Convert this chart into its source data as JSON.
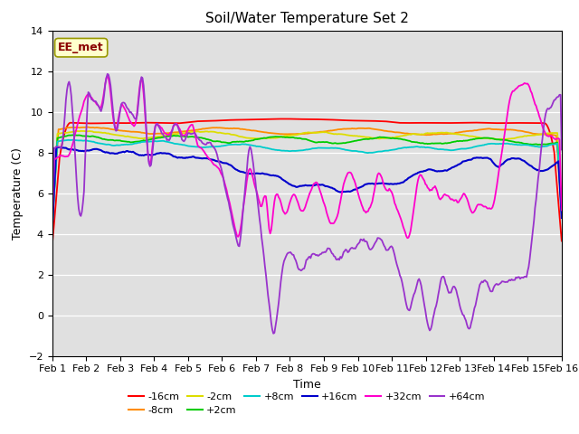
{
  "title": "Soil/Water Temperature Set 2",
  "xlabel": "Time",
  "ylabel": "Temperature (C)",
  "ylim": [
    -2,
    14
  ],
  "yticks": [
    -2,
    0,
    2,
    4,
    6,
    8,
    10,
    12,
    14
  ],
  "x_labels": [
    "Feb 1",
    "Feb 2",
    "Feb 3",
    "Feb 4",
    "Feb 5",
    "Feb 6",
    "Feb 7",
    "Feb 8",
    "Feb 9",
    "Feb 10",
    "Feb 11",
    "Feb 12",
    "Feb 13",
    "Feb 14",
    "Feb 15",
    "Feb 16"
  ],
  "annotation_text": "EE_met",
  "annotation_color": "#8B0000",
  "annotation_bg": "#FFFFCC",
  "annotation_edge": "#999900",
  "series_order": [
    "-16cm",
    "-8cm",
    "-2cm",
    "+2cm",
    "+8cm",
    "+16cm",
    "+32cm",
    "+64cm"
  ],
  "series": {
    "-16cm": {
      "color": "#FF0000",
      "lw": 1.3
    },
    "-8cm": {
      "color": "#FF8C00",
      "lw": 1.3
    },
    "-2cm": {
      "color": "#DDDD00",
      "lw": 1.3
    },
    "+2cm": {
      "color": "#00CC00",
      "lw": 1.3
    },
    "+8cm": {
      "color": "#00CCCC",
      "lw": 1.3
    },
    "+16cm": {
      "color": "#0000CC",
      "lw": 1.5
    },
    "+32cm": {
      "color": "#FF00CC",
      "lw": 1.3
    },
    "+64cm": {
      "color": "#9933CC",
      "lw": 1.3
    }
  },
  "bg_color": "#E0E0E0",
  "grid_color": "#FFFFFF",
  "title_fontsize": 11,
  "tick_fontsize": 8,
  "label_fontsize": 9
}
